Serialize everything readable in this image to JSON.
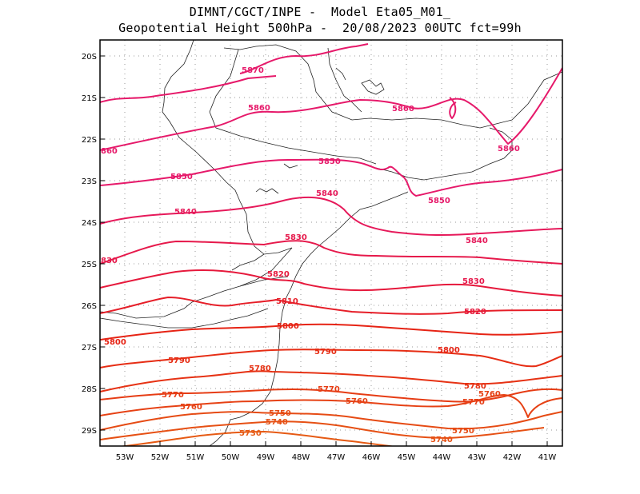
{
  "title": {
    "line1": "DIMNT/CGCT/INPE -  Model Eta05_M01_",
    "line2": "Geopotential Height 500hPa -  20/08/2023 00UTC fct=99h"
  },
  "axes": {
    "lat_labels": [
      "20S",
      "21S",
      "22S",
      "23S",
      "24S",
      "25S",
      "26S",
      "27S",
      "28S",
      "29S"
    ],
    "lon_labels": [
      "53W",
      "52W",
      "51W",
      "50W",
      "49W",
      "48W",
      "47W",
      "46W",
      "45W",
      "44W",
      "43W",
      "42W",
      "41W"
    ]
  },
  "contours": [
    {
      "value": 5870,
      "color": "#e6196a",
      "labels": [
        "5870"
      ]
    },
    {
      "value": 5860,
      "color": "#e6196a",
      "labels": [
        "5860",
        "5860",
        "5860",
        "860"
      ]
    },
    {
      "value": 5850,
      "color": "#e6196a",
      "labels": [
        "5850",
        "5850",
        "5850"
      ]
    },
    {
      "value": 5840,
      "color": "#e6195a",
      "labels": [
        "5840",
        "5840",
        "5840"
      ]
    },
    {
      "value": 5830,
      "color": "#e6194b",
      "labels": [
        "5830",
        "5830",
        "830"
      ]
    },
    {
      "value": 5820,
      "color": "#e6193c",
      "labels": [
        "5820",
        "5820"
      ]
    },
    {
      "value": 5810,
      "color": "#e61e28",
      "labels": [
        "5810"
      ]
    },
    {
      "value": 5800,
      "color": "#e62314",
      "labels": [
        "5800",
        "5800",
        "5800"
      ]
    },
    {
      "value": 5790,
      "color": "#e62d14",
      "labels": [
        "5790",
        "5790"
      ]
    },
    {
      "value": 5780,
      "color": "#e63214",
      "labels": [
        "5780",
        "5780"
      ]
    },
    {
      "value": 5770,
      "color": "#e63c14",
      "labels": [
        "5770",
        "5770",
        "5770"
      ]
    },
    {
      "value": 5760,
      "color": "#e64114",
      "labels": [
        "5760",
        "5760",
        "5760"
      ]
    },
    {
      "value": 5750,
      "color": "#e64b14",
      "labels": [
        "5750",
        "5750"
      ]
    },
    {
      "value": 5740,
      "color": "#e65014",
      "labels": [
        "5740",
        "5740"
      ]
    },
    {
      "value": 5730,
      "color": "#e65a14",
      "labels": [
        "5730"
      ]
    }
  ]
}
